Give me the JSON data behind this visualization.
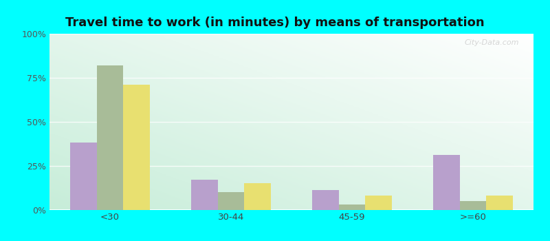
{
  "title": "Travel time to work (in minutes) by means of transportation",
  "categories": [
    "<30",
    "30-44",
    "45-59",
    ">=60"
  ],
  "series": {
    "Public transportation - Indiana": [
      38,
      82,
      17,
      10,
      11,
      3,
      31,
      5
    ],
    "labels": [
      "<30",
      "<30",
      "30-44",
      "30-44",
      "45-59",
      "45-59",
      ">=60",
      ">=60"
    ]
  },
  "data": {
    "Public transportation - Indiana": [
      38,
      17,
      11,
      31
    ],
    "Other means - Syracuse": [
      82,
      10,
      3,
      5
    ],
    "Other means - Indiana": [
      71,
      15,
      8,
      8
    ]
  },
  "colors": {
    "Public transportation - Indiana": "#b8a0cc",
    "Other means - Syracuse": "#a8bc98",
    "Other means - Indiana": "#e8e070"
  },
  "legend_colors": {
    "Public transportation - Indiana": "#cc99cc",
    "Other means - Syracuse": "#b8c8a8",
    "Other means - Indiana": "#e8d840"
  },
  "ylim": [
    0,
    100
  ],
  "yticks": [
    0,
    25,
    50,
    75,
    100
  ],
  "ytick_labels": [
    "0%",
    "25%",
    "50%",
    "75%",
    "100%"
  ],
  "bg_gradient_colors": [
    "#c8f0d8",
    "#e8fce8",
    "#f0faf0",
    "#f8fff8"
  ],
  "outer_background": "#00ffff",
  "grid_color": "#d8eed8",
  "bar_width": 0.22,
  "title_fontsize": 13,
  "watermark_text": "City-Data.com"
}
